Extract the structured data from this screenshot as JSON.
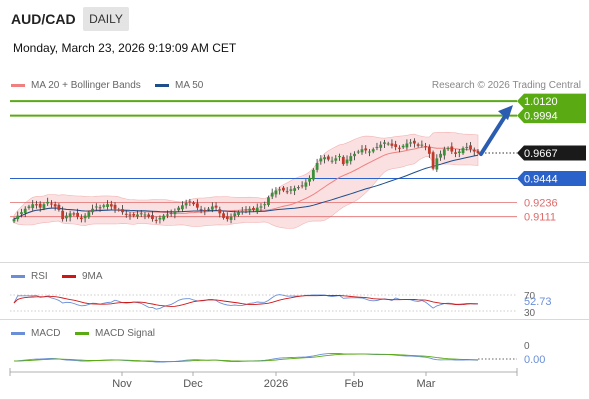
{
  "header": {
    "pair": "AUD/CAD",
    "timeframe": "DAILY",
    "datetime": "Monday, March 23, 2026 9:19:09 AM CET"
  },
  "legend": {
    "ma20": "MA 20 + Bollinger Bands",
    "ma50": "MA 50",
    "credit": "Research © 2026 Trading Central"
  },
  "colors": {
    "ma20": "#f08080",
    "ma50": "#1f4e8c",
    "bull": "#3a8f3a",
    "bear": "#c0392b",
    "resistance": "#5aaa14",
    "support": "#2a62c9",
    "minor": "#e06a6a",
    "rsi": "#6a8fd8",
    "rsi_ma": "#d01515",
    "macd": "#6a8fd8",
    "macd_signal": "#5aaa14",
    "arrow": "#2a5db0"
  },
  "chart_data": [
    {
      "type": "candlestick",
      "ylim": [
        0.875,
        1.02
      ],
      "x_tick_labels": [
        "Nov",
        "Dec",
        "2026",
        "Feb",
        "Mar"
      ],
      "levels": [
        {
          "label": "1.0120",
          "value": 1.012,
          "kind": "resistance"
        },
        {
          "label": "0.9994",
          "value": 0.9994,
          "kind": "resistance"
        },
        {
          "label": "0.9667",
          "value": 0.9667,
          "kind": "last"
        },
        {
          "label": "0.9444",
          "value": 0.9444,
          "kind": "support"
        },
        {
          "label": "0.9236",
          "value": 0.9236,
          "kind": "minor"
        },
        {
          "label": "0.9111",
          "value": 0.9111,
          "kind": "minor"
        }
      ],
      "close": [
        0.909,
        0.912,
        0.915,
        0.918,
        0.92,
        0.922,
        0.921,
        0.919,
        0.922,
        0.924,
        0.922,
        0.92,
        0.917,
        0.909,
        0.912,
        0.914,
        0.913,
        0.911,
        0.909,
        0.912,
        0.915,
        0.918,
        0.92,
        0.919,
        0.921,
        0.922,
        0.92,
        0.918,
        0.917,
        0.915,
        0.913,
        0.912,
        0.912,
        0.913,
        0.914,
        0.913,
        0.911,
        0.909,
        0.908,
        0.91,
        0.912,
        0.913,
        0.914,
        0.916,
        0.919,
        0.921,
        0.923,
        0.924,
        0.922,
        0.919,
        0.917,
        0.916,
        0.918,
        0.92,
        0.919,
        0.914,
        0.91,
        0.909,
        0.911,
        0.914,
        0.915,
        0.916,
        0.917,
        0.918,
        0.917,
        0.919,
        0.92,
        0.922,
        0.928,
        0.932,
        0.934,
        0.935,
        0.934,
        0.933,
        0.935,
        0.936,
        0.937,
        0.938,
        0.941,
        0.945,
        0.952,
        0.958,
        0.962,
        0.963,
        0.961,
        0.96,
        0.962,
        0.964,
        0.957,
        0.961,
        0.964,
        0.966,
        0.968,
        0.97,
        0.969,
        0.968,
        0.97,
        0.972,
        0.974,
        0.976,
        0.975,
        0.973,
        0.972,
        0.971,
        0.973,
        0.975,
        0.976,
        0.975,
        0.973,
        0.974,
        0.972,
        0.966,
        0.953,
        0.962,
        0.966,
        0.97,
        0.971,
        0.968,
        0.966,
        0.968,
        0.971,
        0.972,
        0.97,
        0.968,
        0.9667
      ],
      "annotation": "arrow from last close toward 1.0120"
    },
    {
      "type": "line",
      "title": "RSI",
      "series": [
        {
          "name": "RSI",
          "values": []
        },
        {
          "name": "9MA",
          "values": []
        }
      ],
      "y_tick_labels": [
        "70",
        "30"
      ],
      "ylim": [
        20,
        80
      ],
      "current_label": "52.73"
    },
    {
      "type": "line",
      "title": "MACD",
      "series": [
        {
          "name": "MACD",
          "values": []
        },
        {
          "name": "MACD Signal",
          "values": []
        }
      ],
      "y_tick_labels": [
        "0"
      ],
      "current_label": "0.00"
    }
  ]
}
